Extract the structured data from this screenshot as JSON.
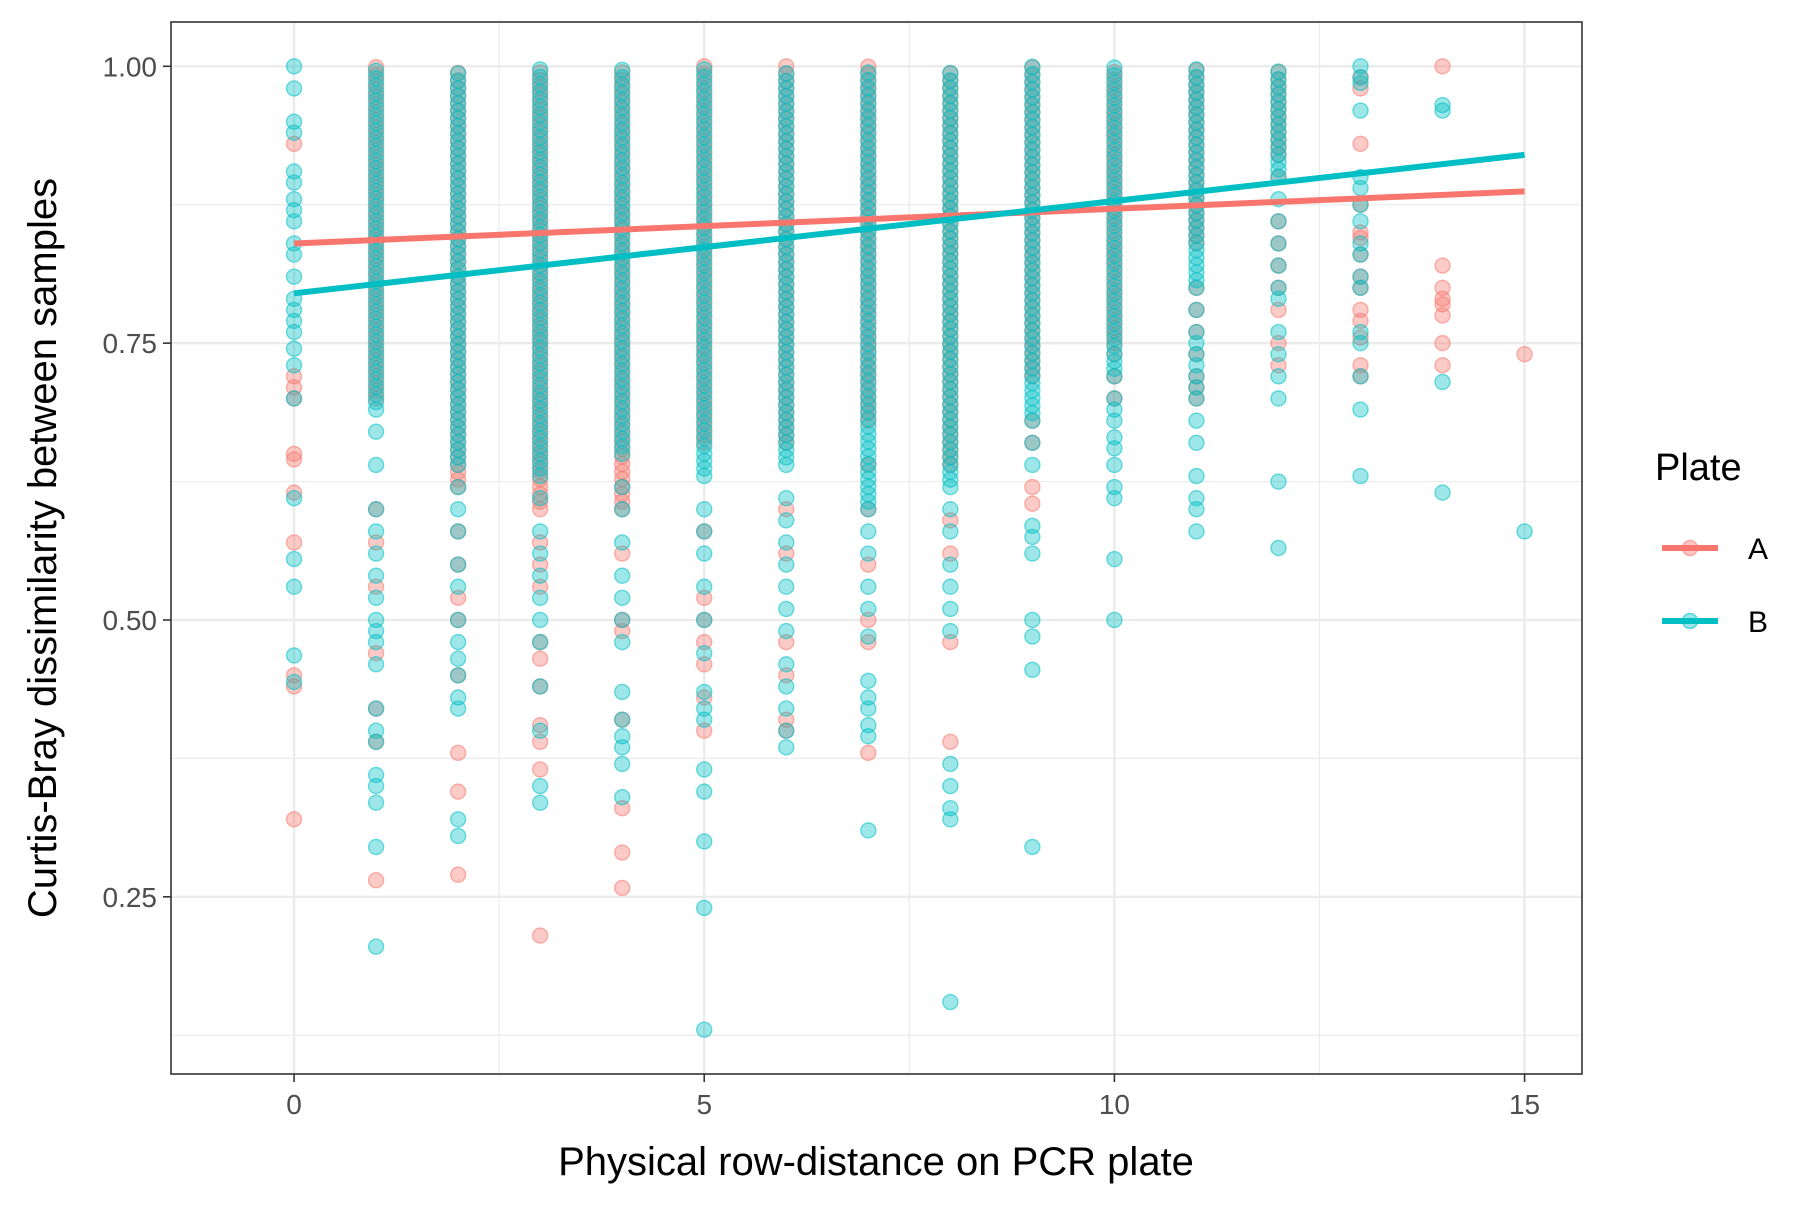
{
  "chart_data": {
    "type": "scatter",
    "xlabel": "Physical row-distance on PCR plate",
    "ylabel": "Curtis-Bray dissimilarity between samples",
    "xlim": [
      -1.5,
      15.7
    ],
    "ylim": [
      0.09,
      1.04
    ],
    "x_ticks": [
      0,
      5,
      10,
      15
    ],
    "y_ticks": [
      0.25,
      0.5,
      0.75,
      1.0
    ],
    "x_tick_labels": [
      "0",
      "5",
      "10",
      "15"
    ],
    "y_tick_labels": [
      "0.25",
      "0.50",
      "0.75",
      "1.00"
    ],
    "x_minor_ticks": [
      2.5,
      7.5,
      12.5
    ],
    "y_minor_ticks": [
      0.125,
      0.375,
      0.625,
      0.875
    ],
    "grid": true,
    "legend": {
      "title": "Plate",
      "position": "right"
    },
    "series": [
      {
        "name": "A",
        "color": "#F8766D",
        "trend": {
          "x": [
            0,
            15
          ],
          "y": [
            0.84,
            0.887
          ]
        },
        "columns": [
          {
            "x": 0,
            "dense": [],
            "extra": [
              0.93,
              0.72,
              0.71,
              0.7,
              0.65,
              0.645,
              0.615,
              0.57,
              0.45,
              0.44,
              0.32
            ]
          },
          {
            "x": 1,
            "dense": [
              0.7,
              1.0
            ],
            "extra": [
              0.6,
              0.57,
              0.53,
              0.47,
              0.42,
              0.39,
              0.265
            ]
          },
          {
            "x": 2,
            "dense": [
              0.62,
              1.0
            ],
            "extra": [
              0.58,
              0.55,
              0.52,
              0.5,
              0.45,
              0.38,
              0.345,
              0.27
            ]
          },
          {
            "x": 3,
            "dense": [
              0.6,
              1.0
            ],
            "extra": [
              0.57,
              0.55,
              0.53,
              0.48,
              0.465,
              0.44,
              0.405,
              0.39,
              0.365,
              0.215
            ]
          },
          {
            "x": 4,
            "dense": [
              0.6,
              1.0
            ],
            "extra": [
              0.56,
              0.5,
              0.49,
              0.41,
              0.33,
              0.29,
              0.258
            ]
          },
          {
            "x": 5,
            "dense": [
              0.66,
              1.0
            ],
            "extra": [
              0.58,
              0.52,
              0.5,
              0.48,
              0.46,
              0.43,
              0.4
            ]
          },
          {
            "x": 6,
            "dense": [
              0.66,
              1.0
            ],
            "extra": [
              0.6,
              0.56,
              0.48,
              0.45,
              0.41,
              0.4
            ]
          },
          {
            "x": 7,
            "dense": [
              0.68,
              1.0
            ],
            "extra": [
              0.64,
              0.6,
              0.55,
              0.5,
              0.48,
              0.38
            ]
          },
          {
            "x": 8,
            "dense": [
              0.64,
              1.0
            ],
            "extra": [
              0.59,
              0.56,
              0.48,
              0.39
            ]
          },
          {
            "x": 9,
            "dense": [
              0.72,
              1.0
            ],
            "extra": [
              0.68,
              0.66,
              0.62,
              0.605
            ]
          },
          {
            "x": 10,
            "dense": [
              0.75,
              1.0
            ],
            "extra": [
              0.74,
              0.72,
              0.7
            ]
          },
          {
            "x": 11,
            "dense": [
              0.84,
              1.0
            ],
            "extra": [
              0.8,
              0.78,
              0.76,
              0.74,
              0.72,
              0.71,
              0.7
            ]
          },
          {
            "x": 12,
            "dense": [
              0.92,
              1.0
            ],
            "extra": [
              0.9,
              0.86,
              0.84,
              0.82,
              0.8,
              0.78,
              0.75,
              0.73
            ]
          },
          {
            "x": 13,
            "dense": [],
            "extra": [
              0.99,
              0.98,
              0.93,
              0.875,
              0.85,
              0.845,
              0.83,
              0.81,
              0.8,
              0.78,
              0.77,
              0.755,
              0.73,
              0.72
            ]
          },
          {
            "x": 14,
            "dense": [],
            "extra": [
              1.0,
              0.82,
              0.8,
              0.79,
              0.785,
              0.775,
              0.75,
              0.73
            ]
          },
          {
            "x": 15,
            "dense": [],
            "extra": [
              0.74
            ]
          }
        ]
      },
      {
        "name": "B",
        "color": "#00BFC4",
        "trend": {
          "x": [
            0,
            15
          ],
          "y": [
            0.795,
            0.92
          ]
        },
        "columns": [
          {
            "x": 0,
            "dense": [],
            "extra": [
              1.0,
              0.98,
              0.95,
              0.94,
              0.905,
              0.895,
              0.88,
              0.87,
              0.86,
              0.84,
              0.83,
              0.81,
              0.79,
              0.78,
              0.77,
              0.76,
              0.745,
              0.73,
              0.7,
              0.61,
              0.555,
              0.53,
              0.468,
              0.444
            ]
          },
          {
            "x": 1,
            "dense": [
              0.69,
              1.0
            ],
            "extra": [
              0.67,
              0.64,
              0.6,
              0.58,
              0.56,
              0.54,
              0.52,
              0.5,
              0.49,
              0.48,
              0.46,
              0.42,
              0.4,
              0.39,
              0.36,
              0.35,
              0.335,
              0.295,
              0.205
            ]
          },
          {
            "x": 2,
            "dense": [
              0.64,
              1.0
            ],
            "extra": [
              0.62,
              0.6,
              0.58,
              0.55,
              0.53,
              0.5,
              0.48,
              0.465,
              0.45,
              0.43,
              0.42,
              0.32,
              0.305
            ]
          },
          {
            "x": 3,
            "dense": [
              0.63,
              1.0
            ],
            "extra": [
              0.61,
              0.58,
              0.56,
              0.54,
              0.52,
              0.5,
              0.48,
              0.44,
              0.4,
              0.35,
              0.335
            ]
          },
          {
            "x": 4,
            "dense": [
              0.65,
              1.0
            ],
            "extra": [
              0.62,
              0.6,
              0.57,
              0.54,
              0.52,
              0.5,
              0.48,
              0.435,
              0.41,
              0.395,
              0.385,
              0.37,
              0.34
            ]
          },
          {
            "x": 5,
            "dense": [
              0.63,
              1.0
            ],
            "extra": [
              0.6,
              0.58,
              0.56,
              0.53,
              0.5,
              0.47,
              0.435,
              0.42,
              0.41,
              0.365,
              0.345,
              0.3,
              0.24,
              0.13
            ]
          },
          {
            "x": 6,
            "dense": [
              0.64,
              1.0
            ],
            "extra": [
              0.61,
              0.59,
              0.57,
              0.55,
              0.53,
              0.51,
              0.49,
              0.46,
              0.44,
              0.42,
              0.4,
              0.385
            ]
          },
          {
            "x": 7,
            "dense": [
              0.6,
              1.0
            ],
            "extra": [
              0.58,
              0.56,
              0.53,
              0.51,
              0.485,
              0.445,
              0.43,
              0.42,
              0.405,
              0.395,
              0.31
            ]
          },
          {
            "x": 8,
            "dense": [
              0.62,
              1.0
            ],
            "extra": [
              0.6,
              0.58,
              0.55,
              0.53,
              0.51,
              0.49,
              0.37,
              0.35,
              0.33,
              0.32,
              0.155
            ]
          },
          {
            "x": 9,
            "dense": [
              0.68,
              1.0
            ],
            "extra": [
              0.66,
              0.64,
              0.585,
              0.575,
              0.56,
              0.5,
              0.485,
              0.455,
              0.295
            ]
          },
          {
            "x": 10,
            "dense": [
              0.72,
              1.0
            ],
            "extra": [
              0.7,
              0.69,
              0.68,
              0.665,
              0.655,
              0.64,
              0.62,
              0.61,
              0.555,
              0.5
            ]
          },
          {
            "x": 11,
            "dense": [
              0.8,
              1.0
            ],
            "extra": [
              0.78,
              0.76,
              0.75,
              0.74,
              0.73,
              0.72,
              0.71,
              0.7,
              0.68,
              0.66,
              0.63,
              0.61,
              0.6,
              0.58
            ]
          },
          {
            "x": 12,
            "dense": [
              0.9,
              1.0
            ],
            "extra": [
              0.88,
              0.86,
              0.84,
              0.82,
              0.8,
              0.79,
              0.76,
              0.74,
              0.72,
              0.7,
              0.625,
              0.565
            ]
          },
          {
            "x": 13,
            "dense": [],
            "extra": [
              1.0,
              0.99,
              0.985,
              0.96,
              0.9,
              0.89,
              0.875,
              0.86,
              0.84,
              0.83,
              0.81,
              0.8,
              0.76,
              0.75,
              0.72,
              0.69,
              0.63
            ]
          },
          {
            "x": 14,
            "dense": [],
            "extra": [
              0.965,
              0.96,
              0.715,
              0.615
            ]
          },
          {
            "x": 15,
            "dense": [],
            "extra": [
              0.58
            ]
          }
        ]
      }
    ]
  }
}
